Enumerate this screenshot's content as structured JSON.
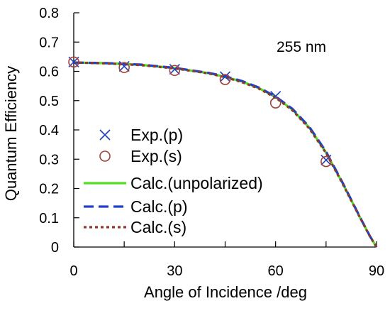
{
  "chart_data": {
    "type": "scatter",
    "title": "",
    "xlabel": "Angle of Incidence /deg",
    "ylabel": "Quantum Efficiency",
    "xlim": [
      0,
      90
    ],
    "ylim": [
      0,
      0.8
    ],
    "x_ticks": [
      0,
      30,
      60,
      90
    ],
    "x_ticks_labels": [
      "0",
      "30",
      "60",
      "90"
    ],
    "y_ticks": [
      0,
      0.1,
      0.2,
      0.3,
      0.4,
      0.5,
      0.6,
      0.7,
      0.8
    ],
    "y_ticks_labels": [
      "0",
      "0.1",
      "0.2",
      "0.3",
      "0.4",
      "0.5",
      "0.6",
      "0.7",
      "0.8"
    ],
    "grid": false,
    "legend_position": "lower-left",
    "annotation": "255 nm",
    "series": [
      {
        "name": "Exp.(p)",
        "kind": "scatter",
        "marker": "x",
        "color": "#1f3fbf",
        "x": [
          0,
          15,
          30,
          45,
          60,
          75
        ],
        "y": [
          0.632,
          0.617,
          0.607,
          0.582,
          0.515,
          0.297
        ]
      },
      {
        "name": "Exp.(s)",
        "kind": "scatter",
        "marker": "circle",
        "color": "#a3403a",
        "x": [
          0,
          15,
          30,
          45,
          60,
          75
        ],
        "y": [
          0.632,
          0.613,
          0.603,
          0.572,
          0.492,
          0.292
        ]
      },
      {
        "name": "Calc.(unpolarized)",
        "kind": "line",
        "style": "solid",
        "color": "#55dd22",
        "x": [
          0,
          10,
          20,
          30,
          40,
          45,
          50,
          55,
          60,
          65,
          70,
          75,
          80,
          85,
          88,
          90
        ],
        "y": [
          0.63,
          0.628,
          0.622,
          0.611,
          0.594,
          0.581,
          0.565,
          0.543,
          0.512,
          0.469,
          0.408,
          0.323,
          0.216,
          0.103,
          0.038,
          0.0
        ]
      },
      {
        "name": "Calc.(p)",
        "kind": "line",
        "style": "dashed",
        "color": "#1f3fcc",
        "x": [
          0,
          10,
          20,
          30,
          40,
          45,
          50,
          55,
          60,
          65,
          70,
          75,
          80,
          85,
          88,
          90
        ],
        "y": [
          0.63,
          0.628,
          0.623,
          0.612,
          0.595,
          0.583,
          0.567,
          0.545,
          0.514,
          0.472,
          0.411,
          0.326,
          0.218,
          0.104,
          0.038,
          0.0
        ]
      },
      {
        "name": "Calc.(s)",
        "kind": "line",
        "style": "dotted",
        "color": "#8b3a2a",
        "x": [
          0,
          10,
          20,
          30,
          40,
          45,
          50,
          55,
          60,
          65,
          70,
          75,
          80,
          85,
          88,
          90
        ],
        "y": [
          0.63,
          0.627,
          0.621,
          0.61,
          0.593,
          0.58,
          0.563,
          0.541,
          0.51,
          0.467,
          0.405,
          0.321,
          0.214,
          0.102,
          0.037,
          0.0
        ]
      }
    ]
  }
}
